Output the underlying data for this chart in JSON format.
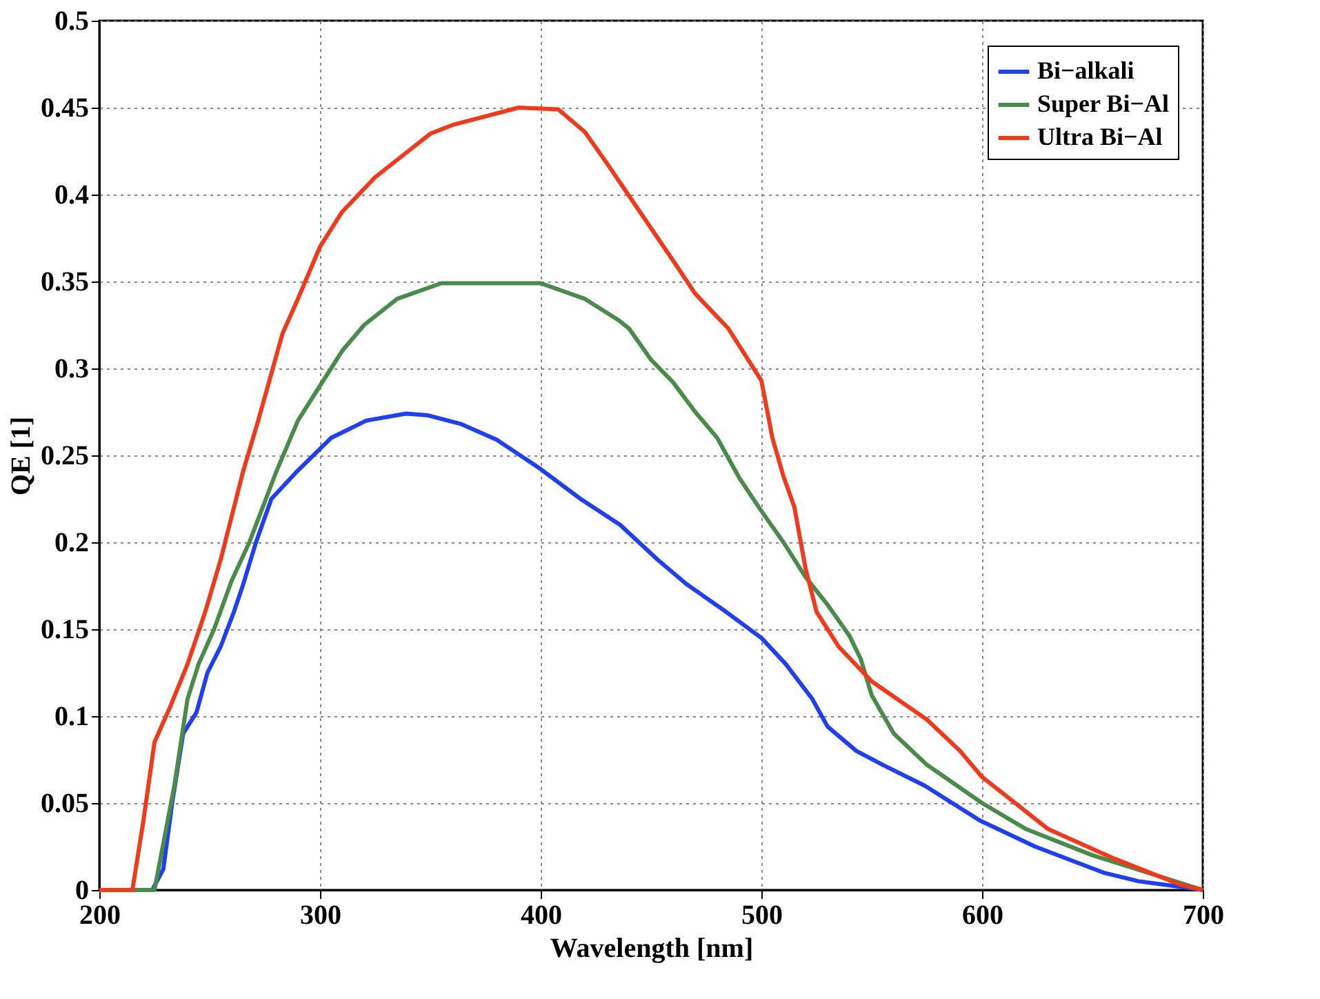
{
  "chart_data": {
    "type": "line",
    "xlabel": "Wavelength [nm]",
    "ylabel": "QE [1]",
    "xlim": [
      200,
      700
    ],
    "xticks": [
      200,
      300,
      400,
      500,
      600,
      700
    ],
    "ylim": [
      0,
      0.5
    ],
    "yticks": [
      0,
      0.05,
      0.1,
      0.15,
      0.2,
      0.25,
      0.3,
      0.35,
      0.4,
      0.45,
      0.5
    ],
    "grid": true,
    "legend": "top right",
    "line_style": "solid",
    "marker": "none",
    "series": [
      {
        "name": "Bi−alkali",
        "color": "#1f3ff0",
        "x": [
          200,
          224,
          229,
          233,
          238,
          244,
          249,
          255,
          261,
          265,
          271,
          278,
          289,
          305,
          321,
          339,
          349,
          364,
          380,
          399,
          418,
          436,
          453,
          466,
          484,
          500,
          511,
          523,
          530,
          543,
          555,
          574,
          599,
          624,
          655,
          671,
          689,
          700
        ],
        "values": [
          0,
          0,
          0.012,
          0.05,
          0.09,
          0.102,
          0.125,
          0.14,
          0.16,
          0.175,
          0.2,
          0.225,
          0.24,
          0.26,
          0.27,
          0.274,
          0.273,
          0.268,
          0.259,
          0.243,
          0.225,
          0.21,
          0.19,
          0.176,
          0.16,
          0.145,
          0.13,
          0.11,
          0.094,
          0.08,
          0.072,
          0.06,
          0.04,
          0.025,
          0.01,
          0.005,
          0.002,
          0
        ]
      },
      {
        "name": "Super Bi−Al",
        "color": "#4a8a4a",
        "x": [
          200,
          225,
          228,
          234,
          240,
          245,
          252,
          260,
          268,
          280,
          290,
          300,
          310,
          320,
          335,
          355,
          375,
          400,
          420,
          435,
          440,
          450,
          460,
          470,
          480,
          490,
          500,
          510,
          520,
          530,
          540,
          545,
          550,
          560,
          575,
          600,
          620,
          650,
          680,
          700
        ],
        "values": [
          0,
          0,
          0.02,
          0.06,
          0.11,
          0.13,
          0.15,
          0.178,
          0.2,
          0.24,
          0.27,
          0.29,
          0.31,
          0.325,
          0.34,
          0.349,
          0.349,
          0.349,
          0.34,
          0.328,
          0.323,
          0.305,
          0.292,
          0.275,
          0.26,
          0.237,
          0.218,
          0.2,
          0.18,
          0.164,
          0.146,
          0.133,
          0.112,
          0.09,
          0.072,
          0.05,
          0.035,
          0.02,
          0.008,
          0
        ]
      },
      {
        "name": "Ultra Bi−Al",
        "color": "#f03a1c",
        "x": [
          200,
          215,
          220,
          225,
          232,
          240,
          248,
          255,
          265,
          272,
          283,
          290,
          300,
          310,
          325,
          340,
          350,
          360,
          375,
          390,
          408,
          420,
          430,
          445,
          460,
          470,
          485,
          500,
          505,
          510,
          515,
          520,
          525,
          535,
          550,
          575,
          590,
          600,
          630,
          660,
          690,
          700
        ],
        "values": [
          0,
          0,
          0.04,
          0.085,
          0.105,
          0.13,
          0.16,
          0.19,
          0.24,
          0.27,
          0.32,
          0.34,
          0.37,
          0.39,
          0.41,
          0.425,
          0.435,
          0.44,
          0.445,
          0.45,
          0.449,
          0.436,
          0.418,
          0.39,
          0.362,
          0.343,
          0.323,
          0.293,
          0.26,
          0.238,
          0.22,
          0.185,
          0.16,
          0.14,
          0.12,
          0.098,
          0.08,
          0.065,
          0.035,
          0.018,
          0.003,
          0
        ]
      }
    ]
  }
}
